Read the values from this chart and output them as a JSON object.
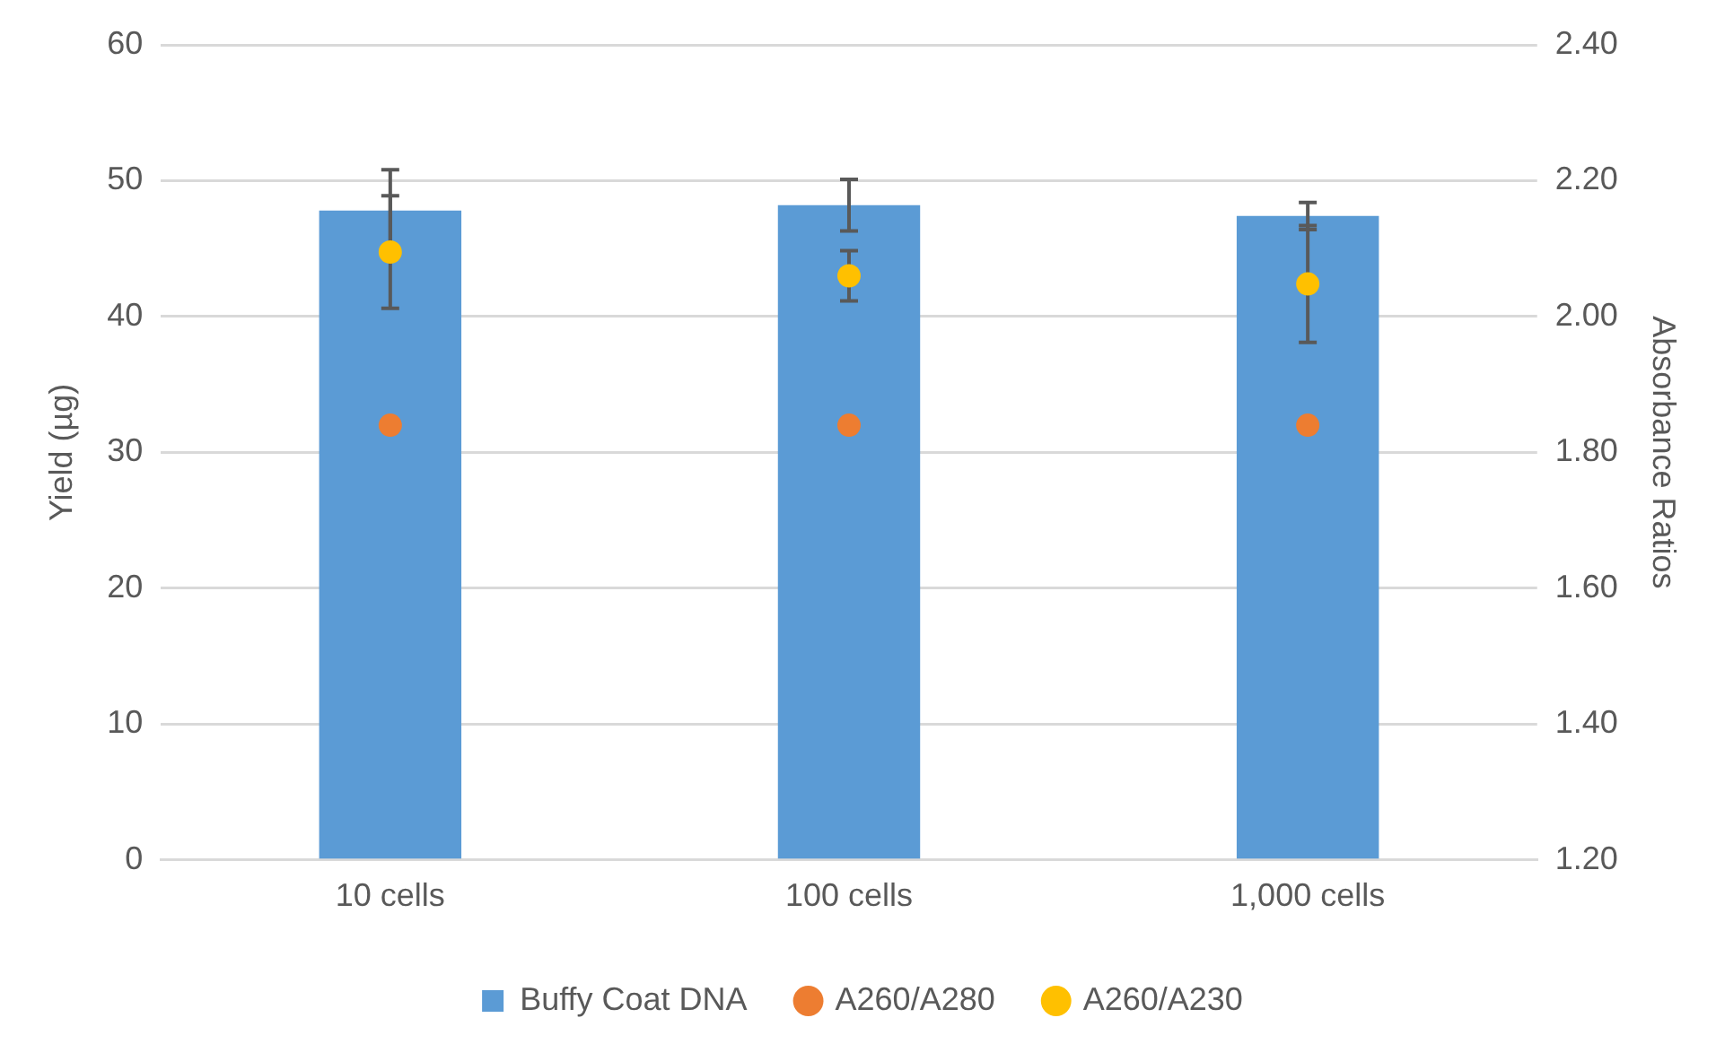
{
  "chart_data": {
    "type": "bar",
    "ylabel": "Yield (µg)",
    "y2label": "Absorbance Ratios",
    "categories": [
      "10 cells",
      "100 cells",
      "1,000 cells"
    ],
    "series": [
      {
        "name": "Buffy Coat DNA",
        "color": "#5b9bd5",
        "values": [
          47.8,
          48.2,
          47.4
        ],
        "errors": [
          3.0,
          1.9,
          1.0
        ]
      },
      {
        "name": "A260/A280",
        "type": "scatter",
        "axis": "y2",
        "color": "#ed7d31",
        "values": [
          1.84,
          1.84,
          1.84
        ]
      },
      {
        "name": "A260/A230",
        "type": "scatter",
        "axis": "y2",
        "color": "#ffc000",
        "values": [
          2.095,
          2.06,
          2.048
        ],
        "errors": [
          0.083,
          0.037,
          0.086
        ]
      }
    ],
    "ylim": [
      0,
      60
    ],
    "yticks": [
      0,
      10,
      20,
      30,
      40,
      50,
      60
    ],
    "y2lim": [
      1.2,
      2.4
    ],
    "y2ticks": [
      {
        "value": 1.2,
        "label": "1.20"
      },
      {
        "value": 1.4,
        "label": "1.40"
      },
      {
        "value": 1.6,
        "label": "1.60"
      },
      {
        "value": 1.8,
        "label": "1.80"
      },
      {
        "value": 2.0,
        "label": "2.00"
      },
      {
        "value": 2.2,
        "label": "2.20"
      },
      {
        "value": 2.4,
        "label": "2.40"
      }
    ],
    "grid": "y",
    "legend": "bottom",
    "marker": "circle"
  }
}
